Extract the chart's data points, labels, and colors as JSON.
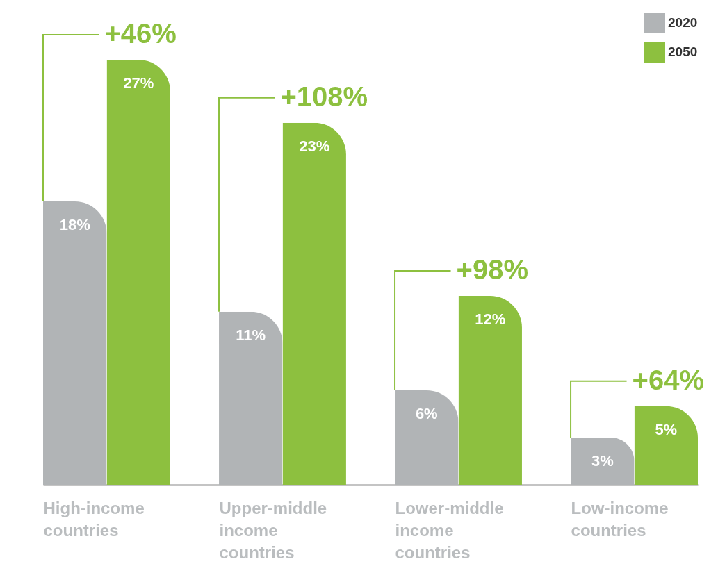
{
  "chart_data": {
    "type": "bar",
    "categories": [
      "High-income countries",
      "Upper-middle income countries",
      "Lower-middle income countries",
      "Low-income countries"
    ],
    "series": [
      {
        "name": "2020",
        "color": "#b1b4b6",
        "values": [
          18,
          11,
          6,
          3
        ],
        "value_labels": [
          "18%",
          "11%",
          "6%",
          "3%"
        ]
      },
      {
        "name": "2050",
        "color": "#8dc03f",
        "values": [
          27,
          23,
          12,
          5
        ],
        "value_labels": [
          "27%",
          "23%",
          "12%",
          "5%"
        ]
      }
    ],
    "ylim": [
      0,
      30
    ],
    "tick_labels": "x",
    "legend": "top right",
    "grid": false,
    "annotations": [
      "+46%",
      "+108%",
      "+98%",
      "+64%"
    ]
  }
}
